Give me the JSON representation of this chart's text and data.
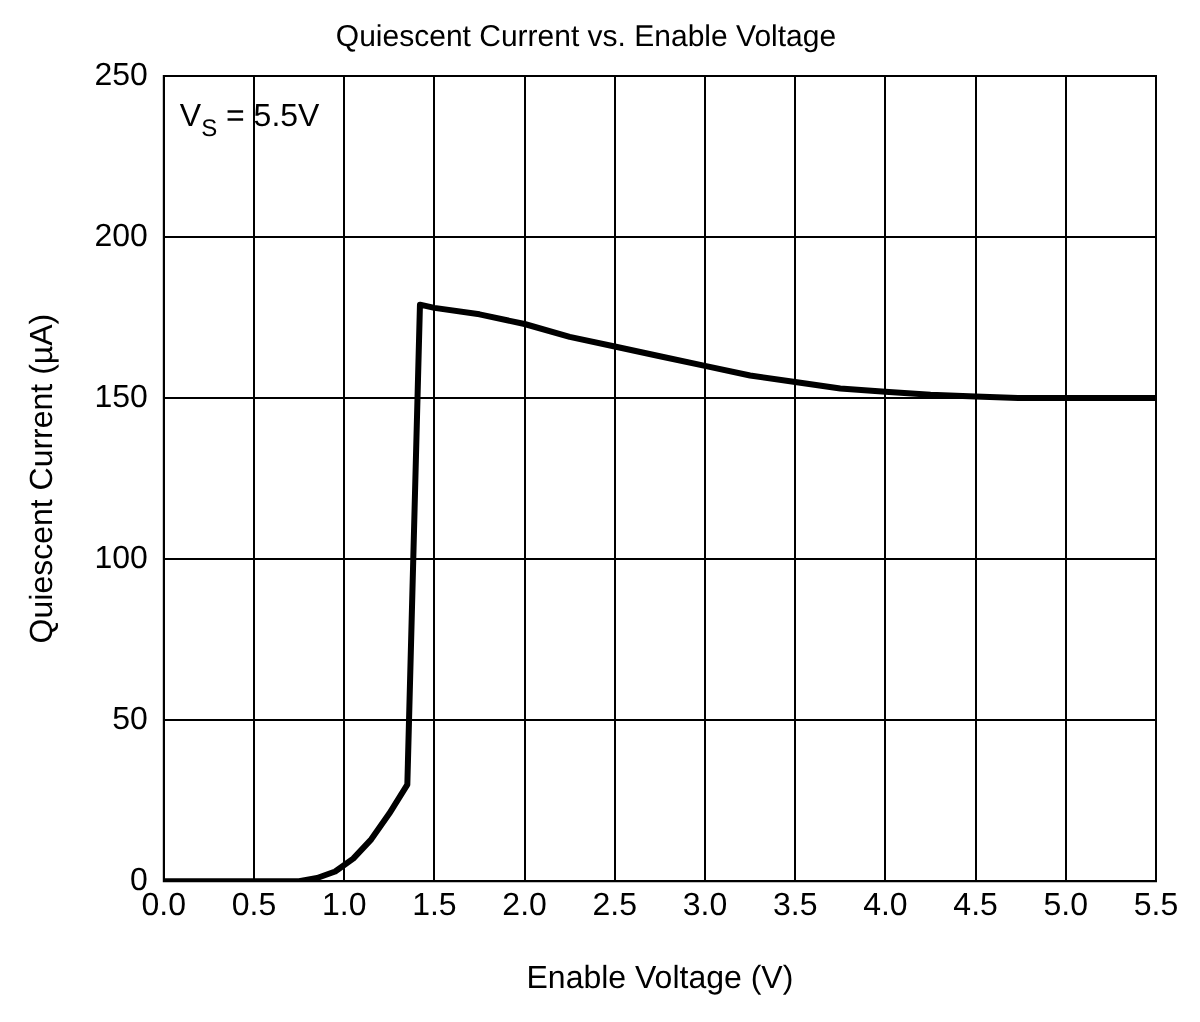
{
  "chart_data": {
    "type": "line",
    "title": "Quiescent Current vs. Enable Voltage",
    "xlabel": "Enable Voltage (V)",
    "ylabel": "Quiescent Current (µA)",
    "annotations": [
      "V$_{S}$ = 5.5V"
    ],
    "x": [
      0,
      0.5,
      0.75,
      0.85,
      0.95,
      1.05,
      1.15,
      1.25,
      1.35,
      1.42,
      1.5,
      1.75,
      2.0,
      2.25,
      2.5,
      2.75,
      3.0,
      3.25,
      3.5,
      3.75,
      4.0,
      4.25,
      4.5,
      4.75,
      5.0,
      5.5
    ],
    "series": [
      {
        "color": "#000000",
        "values": [
          0,
          0,
          0,
          1,
          3,
          7,
          13,
          21,
          30,
          179,
          178,
          176,
          173,
          169,
          166,
          163,
          160,
          157,
          155,
          153,
          152,
          151,
          150.5,
          150,
          150,
          150
        ]
      }
    ],
    "xlim": [
      0,
      5.5
    ],
    "xticks": [
      {
        "value": 0,
        "label": "0.0"
      },
      {
        "value": 0.5,
        "label": "0.5"
      },
      {
        "value": 1,
        "label": "1.0"
      },
      {
        "value": 1.5,
        "label": "1.5"
      },
      {
        "value": 2,
        "label": "2.0"
      },
      {
        "value": 2.5,
        "label": "2.5"
      },
      {
        "value": 3,
        "label": "3.0"
      },
      {
        "value": 3.5,
        "label": "3.5"
      },
      {
        "value": 4,
        "label": "4.0"
      },
      {
        "value": 4.5,
        "label": "4.5"
      },
      {
        "value": 5,
        "label": "5.0"
      },
      {
        "value": 5.5,
        "label": "5.5"
      }
    ],
    "ylim": [
      0,
      250
    ],
    "yticks": [
      0,
      50,
      100,
      150,
      200,
      250
    ],
    "grid": true,
    "legend": false,
    "marker": "none",
    "line_style": "solid"
  }
}
